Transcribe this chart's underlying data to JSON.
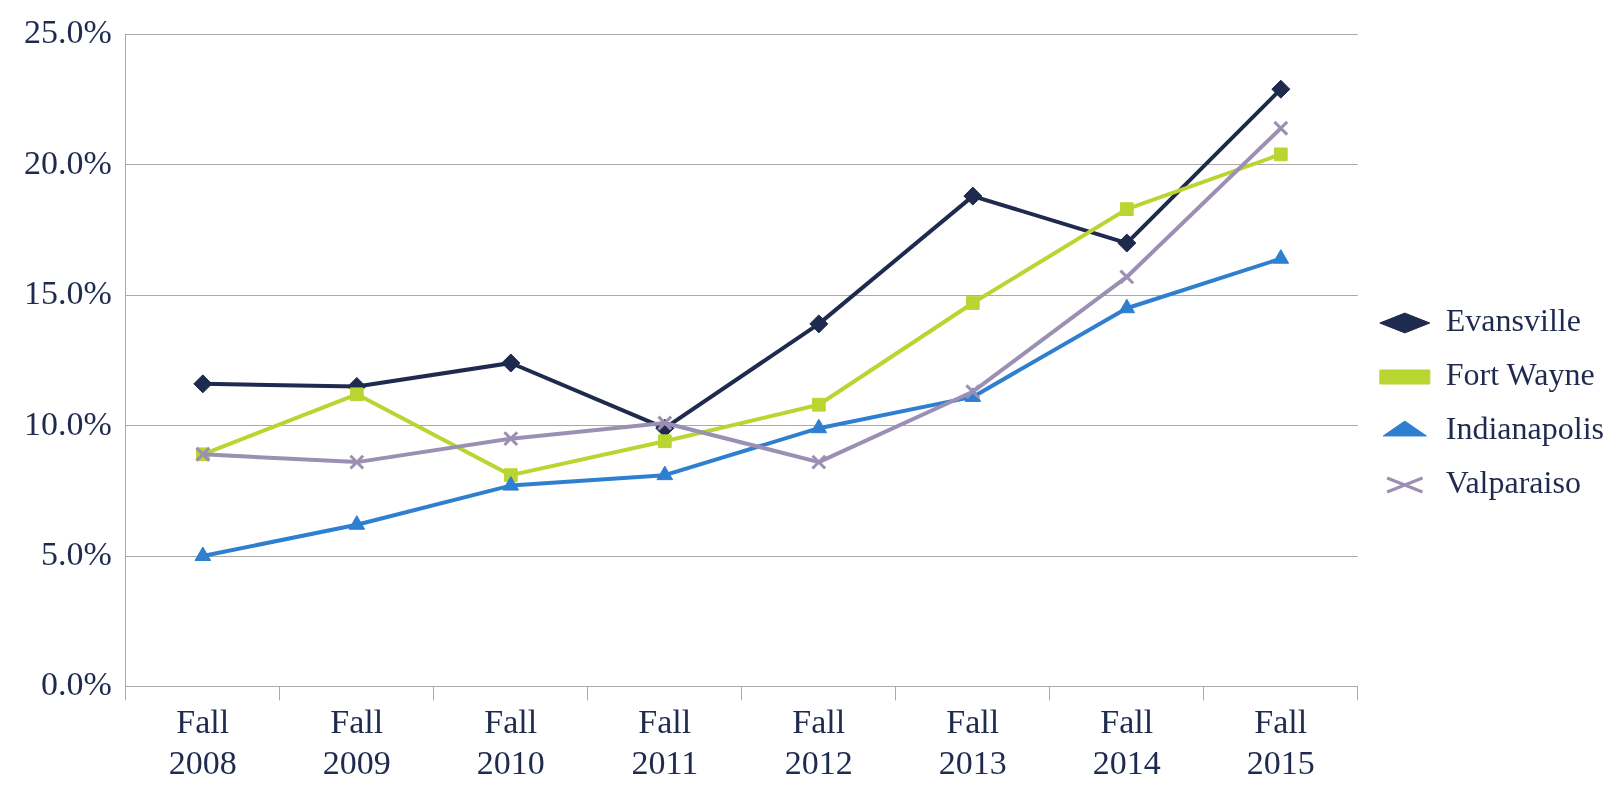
{
  "chart_data": {
    "type": "line",
    "categories": [
      "Fall\n2008",
      "Fall\n2009",
      "Fall\n2010",
      "Fall\n2011",
      "Fall\n2012",
      "Fall\n2013",
      "Fall\n2014",
      "Fall\n2015"
    ],
    "series": [
      {
        "name": "Evansville",
        "color": "#1f2a4f",
        "marker": "diamond",
        "values": [
          11.6,
          11.5,
          12.4,
          9.9,
          13.9,
          18.8,
          17.0,
          22.9
        ]
      },
      {
        "name": "Fort Wayne",
        "color": "#b9d531",
        "marker": "square",
        "values": [
          8.9,
          11.2,
          8.1,
          9.4,
          10.8,
          14.7,
          18.3,
          20.4
        ]
      },
      {
        "name": "Indianapolis",
        "color": "#2e7fd0",
        "marker": "triangle",
        "values": [
          5.0,
          6.2,
          7.7,
          8.1,
          9.9,
          11.1,
          14.5,
          16.4
        ]
      },
      {
        "name": "Valparaiso",
        "color": "#9b8fb3",
        "marker": "cross",
        "values": [
          8.9,
          8.6,
          9.5,
          10.1,
          8.6,
          11.3,
          15.7,
          21.4
        ]
      }
    ],
    "ylim": [
      0,
      25
    ],
    "yticks": [
      {
        "value": 0,
        "label": "0.0%"
      },
      {
        "value": 5,
        "label": "5.0%"
      },
      {
        "value": 10,
        "label": "10.0%"
      },
      {
        "value": 15,
        "label": "15.0%"
      },
      {
        "value": 20,
        "label": "20.0%"
      },
      {
        "value": 25,
        "label": "25.0%"
      }
    ],
    "grid": "y",
    "legend": "right",
    "line_style": "solid"
  }
}
